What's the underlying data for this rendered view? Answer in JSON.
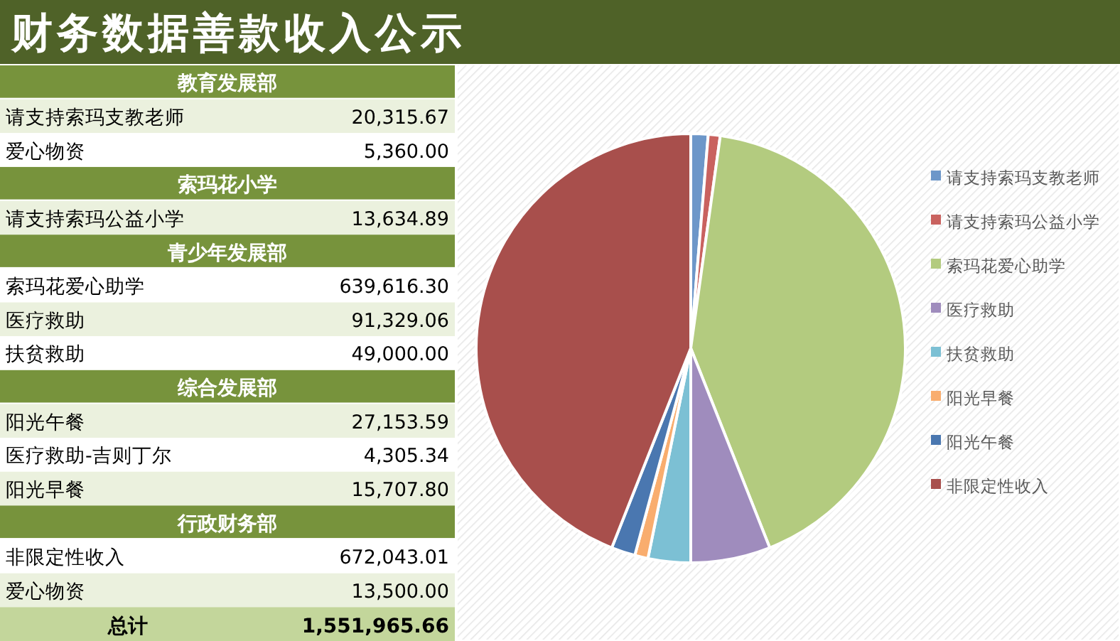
{
  "chart_data": [
    {
      "type": "other",
      "title": "财务数据善款收入公示"
    },
    {
      "type": "other",
      "title": "教育发展部",
      "categories": [
        "请支持索玛支教老师",
        "爱心物资"
      ],
      "value_labels": [
        "20,315.67",
        "5,360.00"
      ]
    },
    {
      "type": "other",
      "title": "索玛花小学",
      "categories": [
        "请支持索玛公益小学"
      ],
      "value_labels": [
        "13,634.89"
      ]
    },
    {
      "type": "other",
      "title": "青少年发展部",
      "categories": [
        "索玛花爱心助学",
        "医疗救助",
        "扶贫救助"
      ],
      "value_labels": [
        "639,616.30",
        "91,329.06",
        "49,000.00"
      ]
    },
    {
      "type": "other",
      "title": "综合发展部",
      "categories": [
        "阳光午餐",
        "医疗救助-吉则丁尔",
        "阳光早餐"
      ],
      "value_labels": [
        "27,153.59",
        "4,305.34",
        "15,707.80"
      ]
    },
    {
      "type": "other",
      "title": "行政财务部",
      "categories": [
        "非限定性收入",
        "爱心物资"
      ],
      "value_labels": [
        "672,043.01",
        "13,500.00"
      ]
    },
    {
      "type": "other",
      "categories": [
        "总计"
      ],
      "value_labels": [
        "1,551,965.66"
      ]
    },
    {
      "type": "pie",
      "categories": [
        "请支持索玛支教老师",
        "请支持索玛公益小学",
        "索玛花爱心助学",
        "医疗救助",
        "扶贫救助",
        "阳光早餐",
        "阳光午餐",
        "非限定性收入"
      ],
      "values": [
        1.3,
        0.9,
        41.8,
        6.0,
        3.2,
        1.0,
        1.8,
        44.0
      ],
      "colors": [
        "#6d97c9",
        "#c9625f",
        "#b3cb7f",
        "#9f8cbd",
        "#7cc0d4",
        "#f9ad6e",
        "#4a77b0",
        "#a84f4c"
      ],
      "legend": "right"
    }
  ]
}
